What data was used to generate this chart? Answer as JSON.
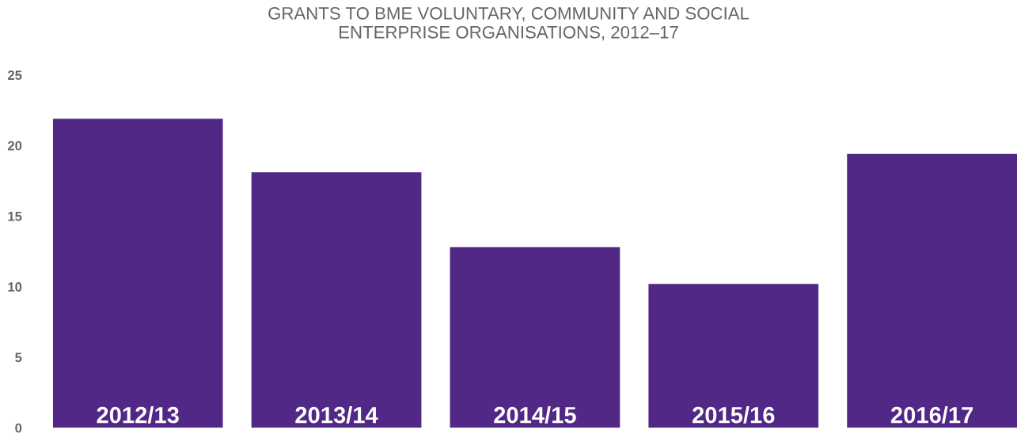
{
  "chart_data": {
    "type": "bar",
    "title": "GRANTS TO BME VOLUNTARY, COMMUNITY AND SOCIAL\nENTERPRISE ORGANISATIONS, 2012–17",
    "categories": [
      "2012/13",
      "2013/14",
      "2014/15",
      "2015/16",
      "2016/17"
    ],
    "values": [
      21.9,
      18.1,
      12.8,
      10.2,
      19.4
    ],
    "color": "#522887",
    "ylim": [
      0,
      25
    ],
    "yticks": [
      0,
      5,
      10,
      15,
      20,
      25
    ],
    "grid": false,
    "legend": false
  }
}
